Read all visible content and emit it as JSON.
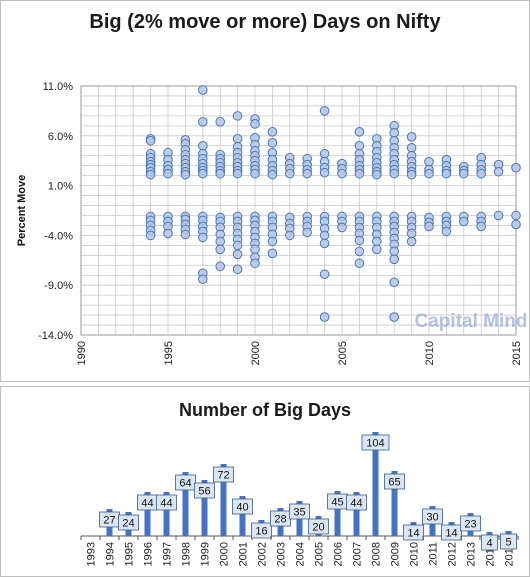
{
  "scatter_chart": {
    "title": "Big (2% move or more) Days on Nifty",
    "ylabel": "Percent Move",
    "watermark": "Capital Mind"
  },
  "bar_chart": {
    "title": "Number of Big Days"
  },
  "colors": {
    "marker_fill": "#b4c7e7",
    "marker_stroke": "#4a76b8",
    "bar_fill": "#4472c4",
    "label_fill": "#dce6f2",
    "grid": "#c8c8c8",
    "watermark": "#8faad8"
  },
  "chart_data": [
    {
      "type": "scatter",
      "title": "Big (2% move or more) Days on Nifty",
      "ylabel": "Percent Move",
      "xlim": [
        1990,
        2015
      ],
      "ylim": [
        -14.0,
        11.0
      ],
      "x_ticks": [
        "1990",
        "1995",
        "2000",
        "2005",
        "2010",
        "2015"
      ],
      "y_ticks": [
        "11.0%",
        "6.0%",
        "1.0%",
        "-4.0%",
        "-9.0%",
        "-14.0%"
      ],
      "grid": true,
      "series": [
        {
          "points": [
            [
              1994,
              5.7
            ],
            [
              1994,
              5.5
            ],
            [
              1994,
              4.2
            ],
            [
              1994,
              3.8
            ],
            [
              1994,
              3.4
            ],
            [
              1994,
              3.1
            ],
            [
              1994,
              2.8
            ],
            [
              1994,
              2.4
            ],
            [
              1994,
              2.1
            ],
            [
              1994,
              -2.1
            ],
            [
              1994,
              -2.5
            ],
            [
              1994,
              -3.0
            ],
            [
              1994,
              -3.5
            ],
            [
              1994,
              -4.0
            ],
            [
              1995,
              4.3
            ],
            [
              1995,
              3.6
            ],
            [
              1995,
              3.0
            ],
            [
              1995,
              2.6
            ],
            [
              1995,
              2.2
            ],
            [
              1995,
              -2.1
            ],
            [
              1995,
              -2.6
            ],
            [
              1995,
              -3.1
            ],
            [
              1995,
              -3.8
            ],
            [
              1996,
              5.6
            ],
            [
              1996,
              5.2
            ],
            [
              1996,
              4.6
            ],
            [
              1996,
              4.1
            ],
            [
              1996,
              3.6
            ],
            [
              1996,
              3.2
            ],
            [
              1996,
              2.8
            ],
            [
              1996,
              2.4
            ],
            [
              1996,
              2.1
            ],
            [
              1996,
              -2.1
            ],
            [
              1996,
              -2.4
            ],
            [
              1996,
              -2.9
            ],
            [
              1996,
              -3.4
            ],
            [
              1996,
              -3.9
            ],
            [
              1997,
              10.6
            ],
            [
              1997,
              7.4
            ],
            [
              1997,
              5.0
            ],
            [
              1997,
              4.2
            ],
            [
              1997,
              3.7
            ],
            [
              1997,
              3.2
            ],
            [
              1997,
              2.8
            ],
            [
              1997,
              2.5
            ],
            [
              1997,
              2.2
            ],
            [
              1997,
              -2.1
            ],
            [
              1997,
              -2.5
            ],
            [
              1997,
              -3.1
            ],
            [
              1997,
              -3.6
            ],
            [
              1997,
              -4.2
            ],
            [
              1997,
              -7.8
            ],
            [
              1997,
              -8.4
            ],
            [
              1998,
              7.4
            ],
            [
              1998,
              4.1
            ],
            [
              1998,
              3.7
            ],
            [
              1998,
              3.3
            ],
            [
              1998,
              2.9
            ],
            [
              1998,
              2.5
            ],
            [
              1998,
              2.2
            ],
            [
              1998,
              -2.2
            ],
            [
              1998,
              -2.6
            ],
            [
              1998,
              -3.2
            ],
            [
              1998,
              -3.9
            ],
            [
              1998,
              -4.6
            ],
            [
              1998,
              -5.4
            ],
            [
              1998,
              -7.1
            ],
            [
              1999,
              8.0
            ],
            [
              1999,
              5.7
            ],
            [
              1999,
              4.9
            ],
            [
              1999,
              4.3
            ],
            [
              1999,
              3.8
            ],
            [
              1999,
              3.3
            ],
            [
              1999,
              2.9
            ],
            [
              1999,
              2.5
            ],
            [
              1999,
              2.2
            ],
            [
              1999,
              -2.1
            ],
            [
              1999,
              -2.6
            ],
            [
              1999,
              -3.2
            ],
            [
              1999,
              -3.8
            ],
            [
              1999,
              -4.4
            ],
            [
              1999,
              -5.0
            ],
            [
              1999,
              -5.9
            ],
            [
              1999,
              -7.4
            ],
            [
              2000,
              7.7
            ],
            [
              2000,
              7.2
            ],
            [
              2000,
              5.8
            ],
            [
              2000,
              5.1
            ],
            [
              2000,
              4.5
            ],
            [
              2000,
              4.0
            ],
            [
              2000,
              3.5
            ],
            [
              2000,
              3.0
            ],
            [
              2000,
              2.6
            ],
            [
              2000,
              2.2
            ],
            [
              2000,
              -2.1
            ],
            [
              2000,
              -2.5
            ],
            [
              2000,
              -3.0
            ],
            [
              2000,
              -3.6
            ],
            [
              2000,
              -4.2
            ],
            [
              2000,
              -4.8
            ],
            [
              2000,
              -5.4
            ],
            [
              2000,
              -6.2
            ],
            [
              2000,
              -6.8
            ],
            [
              2001,
              6.4
            ],
            [
              2001,
              5.3
            ],
            [
              2001,
              4.3
            ],
            [
              2001,
              3.6
            ],
            [
              2001,
              3.0
            ],
            [
              2001,
              2.5
            ],
            [
              2001,
              2.1
            ],
            [
              2001,
              -2.1
            ],
            [
              2001,
              -2.6
            ],
            [
              2001,
              -3.2
            ],
            [
              2001,
              -3.9
            ],
            [
              2001,
              -4.6
            ],
            [
              2001,
              -5.8
            ],
            [
              2002,
              3.8
            ],
            [
              2002,
              3.2
            ],
            [
              2002,
              2.7
            ],
            [
              2002,
              2.2
            ],
            [
              2002,
              -2.2
            ],
            [
              2002,
              -2.8
            ],
            [
              2002,
              -3.3
            ],
            [
              2002,
              -4.0
            ],
            [
              2003,
              3.7
            ],
            [
              2003,
              3.1
            ],
            [
              2003,
              2.6
            ],
            [
              2003,
              2.2
            ],
            [
              2003,
              -2.1
            ],
            [
              2003,
              -2.6
            ],
            [
              2003,
              -3.1
            ],
            [
              2003,
              -3.7
            ],
            [
              2004,
              8.5
            ],
            [
              2004,
              4.2
            ],
            [
              2004,
              3.4
            ],
            [
              2004,
              2.8
            ],
            [
              2004,
              2.3
            ],
            [
              2004,
              -2.1
            ],
            [
              2004,
              -2.6
            ],
            [
              2004,
              -3.3
            ],
            [
              2004,
              -4.0
            ],
            [
              2004,
              -4.8
            ],
            [
              2004,
              -7.9
            ],
            [
              2004,
              -12.2
            ],
            [
              2005,
              3.2
            ],
            [
              2005,
              2.7
            ],
            [
              2005,
              2.2
            ],
            [
              2005,
              -2.1
            ],
            [
              2005,
              -2.6
            ],
            [
              2005,
              -3.2
            ],
            [
              2006,
              6.4
            ],
            [
              2006,
              5.0
            ],
            [
              2006,
              4.2
            ],
            [
              2006,
              3.6
            ],
            [
              2006,
              3.0
            ],
            [
              2006,
              2.6
            ],
            [
              2006,
              2.2
            ],
            [
              2006,
              -2.1
            ],
            [
              2006,
              -2.6
            ],
            [
              2006,
              -3.2
            ],
            [
              2006,
              -3.8
            ],
            [
              2006,
              -4.5
            ],
            [
              2006,
              -5.6
            ],
            [
              2006,
              -6.8
            ],
            [
              2007,
              5.7
            ],
            [
              2007,
              5.0
            ],
            [
              2007,
              4.4
            ],
            [
              2007,
              3.8
            ],
            [
              2007,
              3.3
            ],
            [
              2007,
              2.8
            ],
            [
              2007,
              2.4
            ],
            [
              2007,
              2.1
            ],
            [
              2007,
              -2.1
            ],
            [
              2007,
              -2.6
            ],
            [
              2007,
              -3.2
            ],
            [
              2007,
              -3.9
            ],
            [
              2007,
              -4.6
            ],
            [
              2007,
              -5.4
            ],
            [
              2008,
              7.0
            ],
            [
              2008,
              6.3
            ],
            [
              2008,
              5.5
            ],
            [
              2008,
              4.8
            ],
            [
              2008,
              4.2
            ],
            [
              2008,
              3.6
            ],
            [
              2008,
              3.1
            ],
            [
              2008,
              2.6
            ],
            [
              2008,
              2.2
            ],
            [
              2008,
              -2.1
            ],
            [
              2008,
              -2.6
            ],
            [
              2008,
              -3.1
            ],
            [
              2008,
              -3.7
            ],
            [
              2008,
              -4.3
            ],
            [
              2008,
              -4.9
            ],
            [
              2008,
              -5.6
            ],
            [
              2008,
              -6.4
            ],
            [
              2008,
              -8.7
            ],
            [
              2008,
              -12.2
            ],
            [
              2009,
              5.9
            ],
            [
              2009,
              4.8
            ],
            [
              2009,
              4.0
            ],
            [
              2009,
              3.4
            ],
            [
              2009,
              2.9
            ],
            [
              2009,
              2.4
            ],
            [
              2009,
              2.1
            ],
            [
              2009,
              -2.1
            ],
            [
              2009,
              -2.6
            ],
            [
              2009,
              -3.2
            ],
            [
              2009,
              -3.8
            ],
            [
              2009,
              -4.6
            ],
            [
              2010,
              3.4
            ],
            [
              2010,
              2.6
            ],
            [
              2010,
              2.2
            ],
            [
              2010,
              -2.2
            ],
            [
              2010,
              -2.7
            ],
            [
              2010,
              -3.1
            ],
            [
              2011,
              3.6
            ],
            [
              2011,
              3.0
            ],
            [
              2011,
              2.5
            ],
            [
              2011,
              2.2
            ],
            [
              2011,
              -2.1
            ],
            [
              2011,
              -2.6
            ],
            [
              2011,
              -3.0
            ],
            [
              2011,
              -3.6
            ],
            [
              2012,
              2.9
            ],
            [
              2012,
              2.5
            ],
            [
              2012,
              2.2
            ],
            [
              2012,
              -2.1
            ],
            [
              2012,
              -2.6
            ],
            [
              2013,
              3.8
            ],
            [
              2013,
              3.1
            ],
            [
              2013,
              2.6
            ],
            [
              2013,
              2.2
            ],
            [
              2013,
              -2.1
            ],
            [
              2013,
              -2.6
            ],
            [
              2013,
              -3.1
            ],
            [
              2014,
              3.1
            ],
            [
              2014,
              2.4
            ],
            [
              2014,
              -2.0
            ],
            [
              2015,
              2.8
            ],
            [
              2015,
              -2.0
            ],
            [
              2015,
              -2.9
            ]
          ]
        }
      ]
    },
    {
      "type": "bar",
      "title": "Number of Big Days",
      "categories": [
        "1993",
        "1994",
        "1995",
        "1996",
        "1997",
        "1998",
        "1999",
        "2000",
        "2001",
        "2002",
        "2003",
        "2004",
        "2005",
        "2006",
        "2007",
        "2008",
        "2009",
        "2010",
        "2011",
        "2012",
        "2013",
        "2014",
        "2015"
      ],
      "values": [
        null,
        27,
        24,
        44,
        44,
        64,
        56,
        72,
        40,
        16,
        28,
        35,
        20,
        45,
        44,
        104,
        65,
        14,
        30,
        14,
        23,
        4,
        5
      ],
      "data_labels": true,
      "ylim": [
        0,
        110
      ]
    }
  ]
}
